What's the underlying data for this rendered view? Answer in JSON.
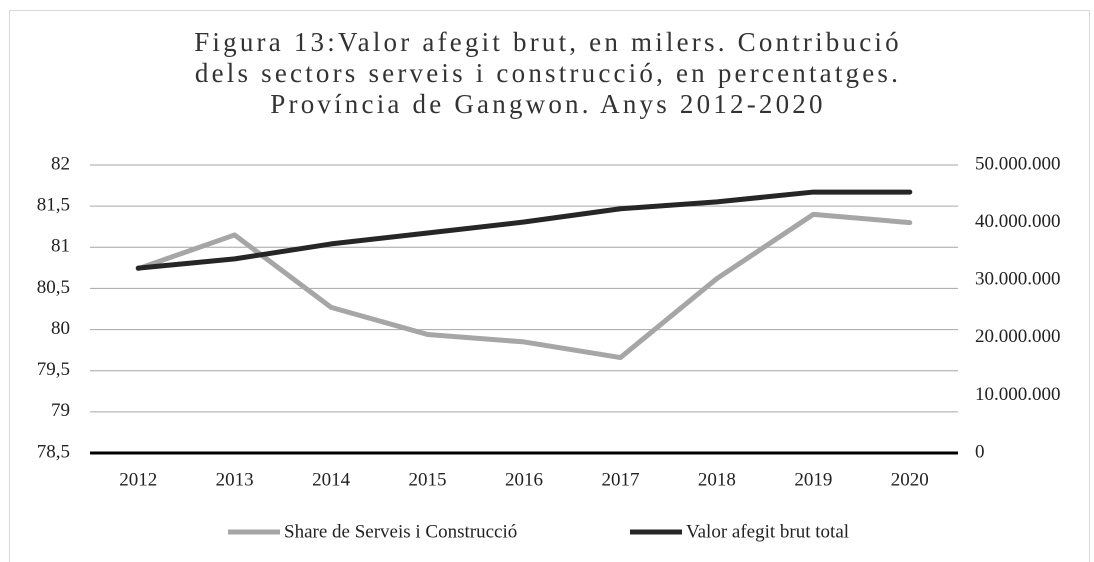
{
  "chart_data": {
    "type": "line",
    "title": [
      "Figura 13:Valor afegit brut, en milers. Contribució",
      "dels sectors serveis i construcció, en percentatges.",
      "Província de Gangwon. Anys 2012-2020"
    ],
    "categories": [
      "2012",
      "2013",
      "2014",
      "2015",
      "2016",
      "2017",
      "2018",
      "2019",
      "2020"
    ],
    "series": [
      {
        "name": "Share de Serveis i Construcció",
        "color": "#a6a6a6",
        "values": [
          80.74,
          81.15,
          80.27,
          79.94,
          79.85,
          79.66,
          80.62,
          81.4,
          81.3
        ]
      },
      {
        "name": "Valor afegit brut total",
        "color": "#262626",
        "axis": "y2",
        "values": [
          32100000,
          33700000,
          36300000,
          38200000,
          40100000,
          42400000,
          43600000,
          45300000,
          45300000
        ]
      }
    ],
    "ylim": [
      78.5,
      82
    ],
    "yticks": [
      {
        "value": 78.5,
        "label": "78,5"
      },
      79,
      {
        "value": 79.5,
        "label": "79,5"
      },
      80,
      {
        "value": 80.5,
        "label": "80,5"
      },
      81,
      {
        "value": 81.5,
        "label": "81,5"
      },
      82
    ],
    "y2lim": [
      0,
      50000000
    ],
    "y2ticks": [
      0,
      {
        "value": 10000000,
        "label": "10.000.000"
      },
      {
        "value": 20000000,
        "label": "20.000.000"
      },
      {
        "value": 30000000,
        "label": "30.000.000"
      },
      {
        "value": 40000000,
        "label": "40.000.000"
      },
      {
        "value": 50000000,
        "label": "50.000.000"
      }
    ],
    "grid": true,
    "legend": "bottom"
  }
}
